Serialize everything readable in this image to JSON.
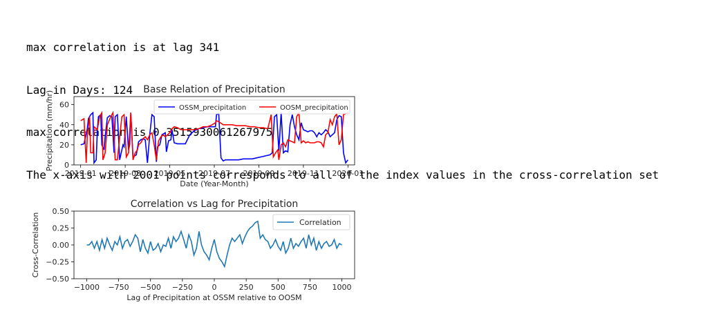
{
  "output_lines": [
    "max correlation is at lag 341",
    "Lag in Days: 124",
    "max correlation is 0.3515930061267975",
    "The x-axis with 2001 points corresponds to all of the index values in the cross-correlation set"
  ],
  "chart_data": [
    {
      "type": "line",
      "title": "Base Relation of Precipitation",
      "xlabel": "Date (Year-Month)",
      "ylabel": "Precipitation (mm/hr)",
      "x_ticks": [
        "2019-01",
        "2019-03",
        "2019-05",
        "2019-07",
        "2019-09",
        "2019-11",
        "2020-01"
      ],
      "y_ticks": [
        "0",
        "20",
        "40",
        "60"
      ],
      "xlim": [
        -0.3,
        12.3
      ],
      "ylim": [
        0,
        68
      ],
      "legend": "top-right",
      "series": [
        {
          "name": "OSSM_precipitation",
          "color": "#0000ff",
          "x": [
            0,
            0.15,
            0.3,
            0.35,
            0.45,
            0.55,
            0.6,
            0.7,
            0.75,
            0.8,
            0.9,
            0.95,
            1.05,
            1.1,
            1.2,
            1.3,
            1.4,
            1.5,
            1.55,
            1.65,
            1.75,
            1.9,
            1.95,
            2.05,
            2.15,
            2.2,
            2.25,
            2.35,
            2.5,
            2.6,
            2.7,
            2.8,
            2.9,
            3.0,
            3.1,
            3.2,
            3.3,
            3.4,
            3.45,
            3.55,
            3.65,
            3.8,
            3.85,
            3.95,
            4.05,
            4.1,
            4.2,
            4.35,
            4.5,
            4.7,
            4.9,
            5.1,
            5.3,
            5.5,
            5.7,
            5.9,
            6.05,
            6.1,
            6.2,
            6.3,
            6.4,
            6.5,
            6.7,
            6.9,
            7.1,
            7.3,
            7.5,
            7.7,
            7.9,
            8.1,
            8.3,
            8.5,
            8.6,
            8.7,
            8.8,
            8.9,
            9.0,
            9.1,
            9.2,
            9.3,
            9.4,
            9.5,
            9.6,
            9.7,
            9.8,
            9.9,
            10.0,
            10.1,
            10.2,
            10.3,
            10.4,
            10.5,
            10.6,
            10.7,
            10.8,
            10.9,
            11.0,
            11.1,
            11.2,
            11.3,
            11.4,
            11.5,
            11.6,
            11.7,
            11.8,
            11.9,
            12.0
          ],
          "y": [
            20,
            21,
            36,
            46,
            50,
            52,
            2,
            5,
            35,
            48,
            50,
            20,
            15,
            28,
            47,
            49,
            48,
            12,
            48,
            50,
            5,
            20,
            18,
            48,
            15,
            20,
            52,
            8,
            10,
            23,
            25,
            26,
            25,
            2,
            30,
            50,
            48,
            3,
            18,
            20,
            30,
            32,
            13,
            24,
            25,
            35,
            22,
            21,
            21,
            21,
            30,
            34,
            36,
            37,
            38,
            38,
            38,
            50,
            51,
            7,
            4,
            5,
            5,
            5,
            5,
            6,
            6,
            6,
            7,
            8,
            9,
            10,
            12,
            48,
            50,
            14,
            52,
            12,
            14,
            13,
            40,
            50,
            38,
            30,
            25,
            42,
            35,
            34,
            33,
            34,
            34,
            32,
            28,
            32,
            30,
            32,
            35,
            33,
            28,
            30,
            32,
            45,
            49,
            48,
            12,
            2,
            5
          ]
        },
        {
          "name": "OOSM_precipitation",
          "color": "#ff0000",
          "x": [
            0,
            0.15,
            0.25,
            0.3,
            0.4,
            0.45,
            0.55,
            0.6,
            0.75,
            0.85,
            0.95,
            1.0,
            1.1,
            1.2,
            1.35,
            1.45,
            1.55,
            1.65,
            1.75,
            1.85,
            1.95,
            2.05,
            2.15,
            2.25,
            2.35,
            2.45,
            2.55,
            2.6,
            2.7,
            2.8,
            2.9,
            3.0,
            3.1,
            3.2,
            3.3,
            3.4,
            3.5,
            3.6,
            3.7,
            3.8,
            3.9,
            4.0,
            4.1,
            4.2,
            4.35,
            4.5,
            4.7,
            4.9,
            5.1,
            5.3,
            5.5,
            5.7,
            5.9,
            6.05,
            6.1,
            6.2,
            6.4,
            6.6,
            6.8,
            7.0,
            7.2,
            7.4,
            7.6,
            7.8,
            8.0,
            8.2,
            8.4,
            8.5,
            8.55,
            8.65,
            8.75,
            8.85,
            8.9,
            9.0,
            9.1,
            9.2,
            9.3,
            9.4,
            9.5,
            9.6,
            9.7,
            9.8,
            9.9,
            10.0,
            10.1,
            10.2,
            10.3,
            10.4,
            10.5,
            10.6,
            10.7,
            10.8,
            10.9,
            11.0,
            11.1,
            11.2,
            11.3,
            11.4,
            11.5,
            11.6,
            11.7,
            11.8,
            11.9,
            12.0
          ],
          "y": [
            44,
            46,
            2,
            30,
            48,
            12,
            12,
            38,
            35,
            48,
            52,
            5,
            12,
            40,
            48,
            52,
            5,
            5,
            28,
            48,
            50,
            8,
            12,
            52,
            5,
            12,
            15,
            20,
            22,
            26,
            28,
            25,
            30,
            32,
            20,
            5,
            24,
            28,
            30,
            28,
            30,
            32,
            36,
            38,
            37,
            35,
            35,
            35,
            35,
            36,
            38,
            38,
            40,
            42,
            44,
            43,
            40,
            40,
            40,
            39,
            39,
            39,
            38,
            38,
            37,
            37,
            36,
            45,
            50,
            8,
            12,
            15,
            5,
            20,
            22,
            18,
            25,
            24,
            23,
            22,
            48,
            52,
            22,
            24,
            22,
            23,
            22,
            22,
            22,
            23,
            23,
            22,
            18,
            30,
            32,
            45,
            40,
            48,
            51,
            20,
            25,
            50,
            51,
            52
          ]
        }
      ]
    },
    {
      "type": "line",
      "title": "Correlation vs Lag for Precipitation",
      "xlabel": "Lag of Precipitation at OSSM relative to OOSM",
      "ylabel": "Cross-Correlation",
      "x_ticks": [
        -1000,
        -750,
        -500,
        -250,
        0,
        250,
        500,
        750,
        1000
      ],
      "y_ticks": [
        0.5,
        0.25,
        0.0,
        -0.25,
        -0.5
      ],
      "y_tick_labels": [
        "0.50",
        "0.25",
        "0.00",
        "−0.25",
        "−0.50"
      ],
      "x_tick_labels": [
        "−1000",
        "−750",
        "−500",
        "−250",
        "0",
        "250",
        "500",
        "750",
        "1000"
      ],
      "xlim": [
        -1100,
        1100
      ],
      "ylim": [
        -0.5,
        0.5
      ],
      "legend": "top-right",
      "series": [
        {
          "name": "Correlation",
          "color": "#1f77b4",
          "x": [
            -1000,
            -980,
            -960,
            -940,
            -920,
            -900,
            -880,
            -860,
            -840,
            -820,
            -800,
            -780,
            -760,
            -740,
            -720,
            -700,
            -680,
            -660,
            -640,
            -620,
            -600,
            -580,
            -560,
            -540,
            -520,
            -500,
            -480,
            -460,
            -440,
            -420,
            -400,
            -380,
            -360,
            -340,
            -320,
            -300,
            -280,
            -260,
            -240,
            -220,
            -200,
            -180,
            -160,
            -140,
            -120,
            -100,
            -80,
            -60,
            -40,
            -20,
            0,
            20,
            40,
            60,
            80,
            100,
            120,
            140,
            160,
            180,
            200,
            220,
            240,
            260,
            280,
            300,
            320,
            341,
            360,
            380,
            400,
            420,
            440,
            460,
            480,
            500,
            520,
            540,
            560,
            580,
            600,
            620,
            640,
            660,
            680,
            700,
            720,
            740,
            760,
            780,
            800,
            820,
            840,
            860,
            880,
            900,
            920,
            940,
            960,
            980,
            1000
          ],
          "y": [
            0.0,
            0.0,
            0.05,
            -0.05,
            0.05,
            -0.08,
            0.08,
            -0.05,
            0.1,
            0.0,
            -0.08,
            0.05,
            0.0,
            0.12,
            -0.05,
            0.05,
            0.08,
            -0.02,
            0.05,
            0.15,
            0.1,
            -0.1,
            0.08,
            -0.05,
            -0.12,
            0.05,
            -0.08,
            -0.05,
            0.02,
            -0.1,
            0.0,
            -0.02,
            0.1,
            -0.05,
            0.12,
            0.05,
            0.1,
            0.2,
            0.08,
            -0.05,
            0.15,
            0.05,
            -0.15,
            -0.05,
            0.2,
            0.0,
            -0.1,
            -0.15,
            -0.22,
            -0.05,
            0.08,
            -0.1,
            -0.2,
            -0.25,
            -0.32,
            -0.15,
            0.0,
            0.1,
            0.05,
            0.1,
            0.15,
            0.02,
            0.12,
            0.2,
            0.25,
            0.28,
            0.33,
            0.35,
            0.1,
            0.15,
            0.08,
            0.05,
            -0.05,
            0.0,
            0.08,
            -0.02,
            -0.08,
            0.05,
            -0.12,
            -0.05,
            0.1,
            -0.05,
            0.02,
            -0.02,
            0.05,
            0.1,
            -0.05,
            0.15,
            0.0,
            0.1,
            -0.08,
            0.05,
            -0.05,
            0.02,
            0.05,
            -0.02,
            0.0,
            0.08,
            -0.05,
            0.02,
            0.0
          ]
        }
      ]
    }
  ]
}
